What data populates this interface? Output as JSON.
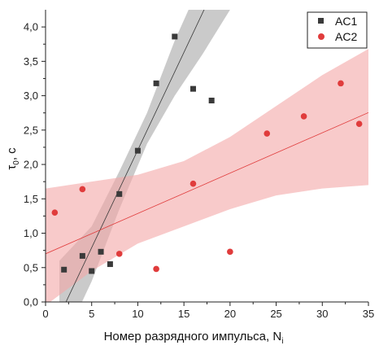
{
  "chart_data": {
    "type": "scatter",
    "xlabel": "Номер разрядного импульса, N",
    "xlabel_sub": "i",
    "ylabel": "τ",
    "ylabel_sub": "0",
    "ylabel_unit": ", c",
    "xlim": [
      0,
      35
    ],
    "ylim": [
      0,
      4.25
    ],
    "x_ticks": [
      0,
      5,
      10,
      15,
      20,
      25,
      30,
      35
    ],
    "x_tick_labels": [
      "0",
      "5",
      "10",
      "15",
      "20",
      "25",
      "30",
      "35"
    ],
    "y_ticks": [
      0,
      0.5,
      1.0,
      1.5,
      2.0,
      2.5,
      3.0,
      3.5,
      4.0
    ],
    "y_tick_labels": [
      "0,0",
      "0,5",
      "1,0",
      "1,5",
      "2,0",
      "2,5",
      "3,0",
      "3,5",
      "4,0"
    ],
    "grid": false,
    "legend_position": "top-right",
    "series": [
      {
        "name": "AC1",
        "marker": "square",
        "color": "#3a3a3a",
        "band_color": "#9e9e9e",
        "points": [
          [
            2,
            0.47
          ],
          [
            4,
            0.67
          ],
          [
            5,
            0.45
          ],
          [
            6,
            0.73
          ],
          [
            7,
            0.55
          ],
          [
            8,
            1.57
          ],
          [
            10,
            2.2
          ],
          [
            12,
            3.18
          ],
          [
            14,
            3.86
          ],
          [
            16,
            3.1
          ],
          [
            18,
            2.93
          ]
        ],
        "fit": {
          "slope": 0.284,
          "intercept": -0.63
        },
        "band": [
          [
            1.5,
            -0.7,
            0.6
          ],
          [
            5,
            0.3,
            1.1
          ],
          [
            8,
            1.35,
            1.9
          ],
          [
            11,
            2.3,
            2.75
          ],
          [
            14,
            3.0,
            3.8
          ],
          [
            17,
            3.6,
            4.7
          ],
          [
            20,
            4.25,
            5.5
          ]
        ]
      },
      {
        "name": "AC2",
        "marker": "circle",
        "color": "#e03c3c",
        "band_color": "#f4a6a6",
        "points": [
          [
            1,
            1.3
          ],
          [
            4,
            1.64
          ],
          [
            8,
            0.7
          ],
          [
            12,
            0.48
          ],
          [
            16,
            1.72
          ],
          [
            20,
            0.73
          ],
          [
            24,
            2.45
          ],
          [
            28,
            2.7
          ],
          [
            32,
            3.18
          ],
          [
            34,
            2.59
          ]
        ],
        "fit": {
          "slope": 0.0587,
          "intercept": 0.7
        },
        "band": [
          [
            0,
            -0.05,
            1.65
          ],
          [
            5,
            0.45,
            1.75
          ],
          [
            10,
            0.85,
            1.85
          ],
          [
            15,
            1.1,
            2.05
          ],
          [
            20,
            1.35,
            2.4
          ],
          [
            25,
            1.55,
            2.85
          ],
          [
            30,
            1.65,
            3.3
          ],
          [
            35,
            1.7,
            3.68
          ]
        ]
      }
    ]
  }
}
